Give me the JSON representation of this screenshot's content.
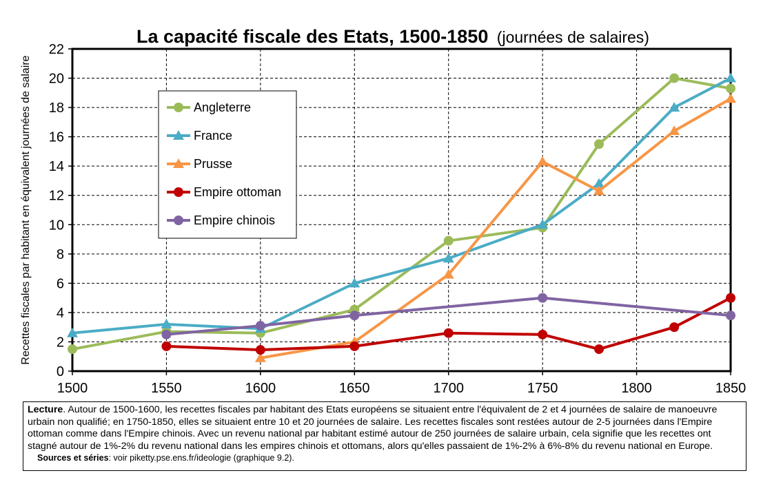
{
  "chart_data": {
    "type": "line",
    "title": "La capacité fiscale des Etats, 1500-1850",
    "subtitle": "(journées de salaires)",
    "xlabel": "",
    "ylabel": "Recettes fiscales par habitant en équivalent journées de salaire",
    "xlim": [
      1500,
      1850
    ],
    "ylim": [
      0,
      22
    ],
    "x_ticks": [
      1500,
      1550,
      1600,
      1650,
      1700,
      1750,
      1800,
      1850
    ],
    "y_ticks": [
      0,
      2,
      4,
      6,
      8,
      10,
      12,
      14,
      16,
      18,
      20,
      22
    ],
    "grid": true,
    "legend_position": "upper-left",
    "series": [
      {
        "name": "Angleterre",
        "color": "#9BBB59",
        "marker": "circle",
        "x": [
          1500,
          1550,
          1600,
          1650,
          1700,
          1750,
          1780,
          1820,
          1850
        ],
        "y": [
          1.5,
          2.7,
          2.6,
          4.2,
          8.9,
          9.8,
          15.5,
          20.0,
          19.3
        ]
      },
      {
        "name": "France",
        "color": "#4BACC6",
        "marker": "triangle",
        "x": [
          1500,
          1550,
          1600,
          1650,
          1700,
          1750,
          1780,
          1820,
          1850
        ],
        "y": [
          2.6,
          3.2,
          2.9,
          6.0,
          7.7,
          10.0,
          12.8,
          18.0,
          20.0
        ]
      },
      {
        "name": "Prusse",
        "color": "#F79646",
        "marker": "triangle",
        "x": [
          1600,
          1650,
          1700,
          1750,
          1780,
          1820,
          1850
        ],
        "y": [
          0.9,
          2.0,
          6.6,
          14.3,
          12.3,
          16.4,
          18.6
        ]
      },
      {
        "name": "Empire ottoman",
        "color": "#C00000",
        "marker": "circle",
        "x": [
          1550,
          1600,
          1650,
          1700,
          1750,
          1780,
          1820,
          1850
        ],
        "y": [
          1.7,
          1.45,
          1.7,
          2.6,
          2.5,
          1.5,
          3.0,
          5.0
        ]
      },
      {
        "name": "Empire chinois",
        "color": "#8064A2",
        "marker": "circle",
        "x": [
          1550,
          1600,
          1650,
          1750,
          1850
        ],
        "y": [
          2.5,
          3.1,
          3.8,
          5.0,
          3.8
        ]
      }
    ]
  },
  "caption": {
    "lead_label": "Lecture",
    "text": ". Autour de 1500-1600, les recettes fiscales par habitant des Etats européens se situaient entre l'équivalent de 2 et 4 journées de salaire de manoeuvre urbain non qualifié; en 1750-1850, elles se situaient entre 10 et 20 journées de salaire. Les recettes fiscales sont restées autour de 2-5 journées dans l'Empire ottoman comme dans l'Empire chinois. Avec un revenu national par habitant estimé autour de 250 journées de salaire urbain, cela signifie que les recettes ont stagné autour de 1%-2% du revenu national dans les empires chinois et ottomans, alors qu'elles passaient de 1%-2% à 6%-8% du revenu national en Europe.",
    "sources_label": "Sources et séries",
    "sources_text": ": voir piketty.pse.ens.fr/ideologie (graphique 9.2)."
  }
}
